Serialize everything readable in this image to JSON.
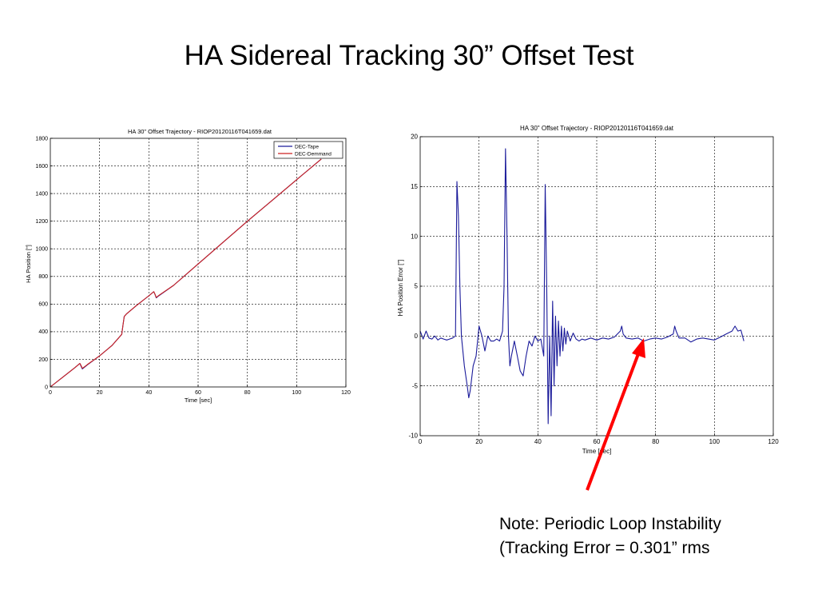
{
  "slide": {
    "title": "HA Sidereal Tracking 30” Offset Test",
    "note_line1": "Note: Periodic Loop Instability",
    "note_line2": "(Tracking Error = 0.301” rms"
  },
  "colors": {
    "series_blue": "#1a1a9a",
    "series_red": "#cc2222",
    "arrow": "#ff0000"
  },
  "chart_data": [
    {
      "type": "line",
      "title": "HA 30\" Offset Trajectory - RIOP20120116T041659.dat",
      "xlabel": "Time [sec]",
      "ylabel": "HA Position [\"]",
      "xlim": [
        0,
        120
      ],
      "ylim": [
        0,
        1800
      ],
      "xticks": [
        0,
        20,
        40,
        60,
        80,
        100,
        120
      ],
      "yticks": [
        0,
        200,
        400,
        600,
        800,
        1000,
        1200,
        1400,
        1600,
        1800
      ],
      "grid": true,
      "legend_position": "top-right",
      "series": [
        {
          "name": "DEC-Tape",
          "color": "#1a1a9a",
          "x": [
            0,
            5,
            10,
            12,
            12.5,
            13,
            14,
            15,
            20,
            25,
            28,
            29,
            29.5,
            30,
            31,
            35,
            40,
            42,
            42.5,
            43,
            44,
            50,
            60,
            70,
            80,
            90,
            100,
            110
          ],
          "y": [
            0,
            70,
            140,
            170,
            150,
            130,
            145,
            160,
            225,
            300,
            360,
            380,
            450,
            510,
            530,
            590,
            660,
            690,
            670,
            645,
            660,
            735,
            890,
            1045,
            1200,
            1350,
            1500,
            1650
          ]
        },
        {
          "name": "DEC-Demmand",
          "color": "#cc2222",
          "x": [
            0,
            5,
            10,
            12,
            12.5,
            13,
            14,
            15,
            20,
            25,
            28,
            29,
            29.5,
            30,
            31,
            35,
            40,
            42,
            42.5,
            43,
            44,
            50,
            60,
            70,
            80,
            90,
            100,
            110
          ],
          "y": [
            0,
            70,
            140,
            170,
            155,
            135,
            148,
            162,
            225,
            300,
            360,
            380,
            450,
            510,
            530,
            590,
            660,
            690,
            672,
            648,
            662,
            735,
            890,
            1045,
            1200,
            1350,
            1500,
            1650
          ]
        }
      ]
    },
    {
      "type": "line",
      "title": "HA 30\" Offset Trajectory - RIOP20120116T041659.dat",
      "xlabel": "Time [sec]",
      "ylabel": "HA Position Error [\"]",
      "xlim": [
        0,
        120
      ],
      "ylim": [
        -10,
        20
      ],
      "xticks": [
        0,
        20,
        40,
        60,
        80,
        100,
        120
      ],
      "yticks": [
        -10,
        -5,
        0,
        5,
        10,
        15,
        20
      ],
      "grid": true,
      "series": [
        {
          "color": "#1a1a9a",
          "x": [
            0,
            1,
            2,
            3,
            4,
            5,
            6,
            7,
            8,
            9,
            10,
            11,
            12,
            12.5,
            13,
            13.5,
            14,
            15,
            16,
            16.5,
            17,
            18,
            19,
            20,
            21,
            22,
            23,
            24,
            25,
            26,
            27,
            28,
            28.5,
            29,
            29.5,
            30,
            30.5,
            31,
            32,
            33,
            34,
            35,
            36,
            37,
            38,
            39,
            40,
            41,
            42,
            42.5,
            43,
            43.5,
            44,
            44.5,
            45,
            45.5,
            46,
            46.5,
            47,
            47.5,
            48,
            48.5,
            49,
            49.5,
            50,
            51,
            52,
            53,
            54,
            55,
            56,
            58,
            60,
            62,
            64,
            66,
            68,
            68.5,
            69,
            70,
            72,
            74,
            76,
            78,
            80,
            82,
            84,
            86,
            86.5,
            87,
            88,
            90,
            92,
            94,
            96,
            98,
            100,
            102,
            104,
            106,
            107,
            108,
            109,
            110
          ],
          "y": [
            0.5,
            -0.3,
            0.5,
            -0.2,
            -0.3,
            0,
            -0.4,
            -0.2,
            -0.3,
            -0.4,
            -0.3,
            -0.2,
            0,
            15.5,
            12,
            5,
            0,
            -3,
            -5,
            -6.2,
            -5.5,
            -3,
            -2,
            1,
            0,
            -1.5,
            0,
            -0.5,
            -0.5,
            -0.3,
            -0.5,
            0.5,
            5,
            18.8,
            10,
            0,
            -3,
            -2,
            -0.5,
            -2,
            -3.5,
            -4,
            -2,
            -0.5,
            -1,
            0,
            -0.5,
            -0.3,
            -2,
            15.2,
            5,
            -8.8,
            0,
            -8,
            3.5,
            -5,
            2,
            -3,
            1.5,
            -2,
            1,
            -1.5,
            0.8,
            -0.8,
            0.5,
            -0.5,
            0.3,
            -0.3,
            -0.5,
            -0.3,
            -0.4,
            -0.2,
            -0.4,
            -0.2,
            -0.3,
            -0.1,
            0.5,
            1,
            0.2,
            -0.2,
            -0.3,
            -0.2,
            -0.5,
            -0.3,
            -0.2,
            -0.3,
            -0.1,
            0.2,
            1,
            0.5,
            -0.2,
            -0.2,
            -0.6,
            -0.3,
            -0.2,
            -0.3,
            -0.4,
            -0.1,
            0.2,
            0.5,
            1,
            0.5,
            0.6,
            -0.5
          ]
        }
      ]
    }
  ]
}
